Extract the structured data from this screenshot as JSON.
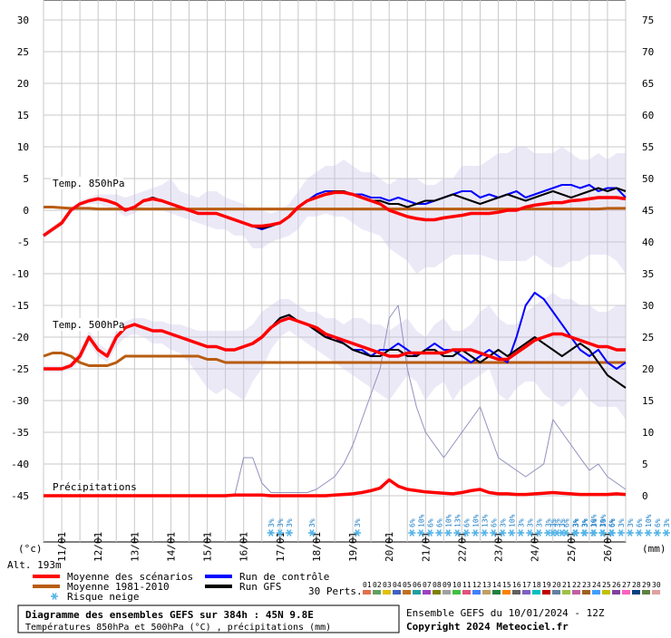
{
  "chart_data": {
    "type": "line",
    "title": "Diagramme des ensembles GEFS sur 384h : 45N 9.8E",
    "subtitle": "Températures 850hPa et 500hPa (°C) , précipitations (mm)",
    "run_info": "Ensemble GEFS du 10/01/2024 - 12Z",
    "copyright": "Copyright 2024 Meteociel.fr",
    "altitude": "Alt. 193m",
    "left_unit": "(°c)",
    "right_unit": "(mm)",
    "left_axis": {
      "ticks": [
        30,
        25,
        20,
        15,
        10,
        5,
        0,
        -5,
        -10,
        -15,
        -20,
        -25,
        -30,
        -35,
        -40,
        -45
      ],
      "ylim": [
        -45,
        30
      ]
    },
    "right_axis": {
      "ticks": [
        75,
        70,
        65,
        60,
        55,
        50,
        45,
        40,
        35,
        30,
        25,
        20,
        15,
        10,
        5,
        0
      ],
      "ylim": [
        0,
        75
      ]
    },
    "x_dates": [
      "11/01",
      "12/01",
      "13/01",
      "14/01",
      "15/01",
      "16/01",
      "17/01",
      "18/01",
      "19/01",
      "20/01",
      "21/01",
      "22/01",
      "23/01",
      "24/01",
      "25/01",
      "26/01"
    ],
    "x_range_hours": [
      0,
      384
    ],
    "panel_labels": {
      "t850": "Temp. 850hPa",
      "t500": "Temp. 500hPa",
      "precip": "Précipitations"
    },
    "legend": {
      "mean": "Moyenne des scénarios",
      "clim": "Moyenne 1981-2010",
      "snow": "Risque neige",
      "control": "Run de contrôle",
      "gfs": "Run GFS",
      "perts": "30 Perts."
    },
    "colors": {
      "mean": "#ff0000",
      "clim": "#b85c10",
      "control": "#0000ff",
      "gfs": "#000000",
      "snow": "#55b4e8",
      "perts": [
        "#e07050",
        "#60a060",
        "#e0c000",
        "#4060c0",
        "#c07020",
        "#20a0a0",
        "#a040c0",
        "#808000",
        "#a0a0a0",
        "#40c040",
        "#e05080",
        "#4080ff",
        "#c0a060",
        "#208040",
        "#ff8000",
        "#606060",
        "#8060c0",
        "#00c0c0",
        "#c00000",
        "#6080a0",
        "#a0c040",
        "#c060a0",
        "#a06020",
        "#40a0ff",
        "#c0c000",
        "#8040a0",
        "#ff60c0",
        "#004080",
        "#608040",
        "#e0a0a0"
      ]
    },
    "pert_numbers": [
      "01",
      "02",
      "03",
      "04",
      "05",
      "06",
      "07",
      "08",
      "09",
      "10",
      "11",
      "12",
      "13",
      "14",
      "15",
      "16",
      "17",
      "18",
      "19",
      "20",
      "21",
      "22",
      "23",
      "24",
      "25",
      "26",
      "27",
      "28",
      "29",
      "30"
    ],
    "t850": {
      "x": [
        0,
        6,
        12,
        18,
        24,
        30,
        36,
        42,
        48,
        54,
        60,
        66,
        72,
        78,
        84,
        90,
        96,
        102,
        108,
        114,
        120,
        126,
        132,
        138,
        144,
        150,
        156,
        162,
        168,
        174,
        180,
        186,
        192,
        198,
        204,
        210,
        216,
        222,
        228,
        234,
        240,
        246,
        252,
        258,
        264,
        270,
        276,
        282,
        288,
        294,
        300,
        306,
        312,
        318,
        324,
        330,
        336,
        342,
        348,
        354,
        360,
        366,
        372,
        378,
        384
      ],
      "mean": [
        -4,
        -3,
        -2,
        0,
        1,
        1.5,
        1.8,
        1.5,
        1,
        0,
        0.5,
        1.5,
        1.8,
        1.5,
        1,
        0.5,
        0,
        -0.5,
        -0.5,
        -0.5,
        -1,
        -1.5,
        -2,
        -2.5,
        -2.5,
        -2.3,
        -2,
        -1,
        0.5,
        1.5,
        2,
        2.5,
        2.8,
        2.8,
        2.5,
        2,
        1.5,
        1,
        0,
        -0.5,
        -1,
        -1.3,
        -1.5,
        -1.5,
        -1.2,
        -1,
        -0.8,
        -0.5,
        -0.5,
        -0.5,
        -0.3,
        0,
        0,
        0.5,
        0.8,
        1,
        1.2,
        1.2,
        1.5,
        1.6,
        1.8,
        2,
        2,
        2,
        1.8
      ],
      "control": [
        -4,
        -3,
        -2,
        0,
        1,
        1.5,
        1.8,
        1.5,
        1,
        0,
        0.5,
        1.5,
        2,
        1.5,
        1,
        0.5,
        0,
        -0.5,
        -0.5,
        -0.5,
        -1,
        -1.5,
        -2,
        -2.5,
        -3,
        -2.5,
        -2,
        -1,
        0.5,
        1.5,
        2.5,
        3,
        3,
        3,
        2.5,
        2.5,
        2,
        2,
        1.5,
        2,
        1.5,
        1,
        1,
        1.5,
        2,
        2.5,
        3,
        3,
        2,
        2.5,
        2,
        2.5,
        3,
        2,
        2.5,
        3,
        3.5,
        4,
        4,
        3.5,
        4,
        3,
        3.5,
        3.5,
        2
      ],
      "gfs": [
        -4,
        -3,
        -2,
        0,
        1,
        1.5,
        1.8,
        1.5,
        1,
        0,
        0.5,
        1.5,
        2,
        1.5,
        1,
        0.5,
        0,
        -0.5,
        -0.5,
        -0.5,
        -1,
        -1.5,
        -2,
        -2.5,
        -2.8,
        -2.5,
        -2,
        -1,
        0.5,
        1.5,
        2,
        2.5,
        3,
        3,
        2.5,
        2,
        1.5,
        1.5,
        1,
        1,
        0.5,
        1,
        1.5,
        1.5,
        2,
        2.5,
        2,
        1.5,
        1,
        1.5,
        2,
        2.5,
        2,
        1.5,
        2,
        2.5,
        3,
        2.5,
        2,
        2.5,
        3,
        3.5,
        3,
        3.5,
        3
      ],
      "clim": [
        0.5,
        0.5,
        0.4,
        0.3,
        0.3,
        0.3,
        0.2,
        0.2,
        0.2,
        0.2,
        0.2,
        0.2,
        0.2,
        0.2,
        0.2,
        0.2,
        0.2,
        0.2,
        0.2,
        0.2,
        0.2,
        0.2,
        0.2,
        0.2,
        0.2,
        0.2,
        0.2,
        0.2,
        0.2,
        0.2,
        0.2,
        0.2,
        0.2,
        0.2,
        0.2,
        0.2,
        0.2,
        0.2,
        0.2,
        0.2,
        0.2,
        0.2,
        0.2,
        0.2,
        0.2,
        0.2,
        0.2,
        0.2,
        0.2,
        0.2,
        0.2,
        0.2,
        0.2,
        0.2,
        0.2,
        0.2,
        0.2,
        0.2,
        0.2,
        0.2,
        0.2,
        0.2,
        0.3,
        0.3,
        0.3
      ],
      "spread_min": [
        -4.5,
        -3.5,
        -2.5,
        -0.5,
        0.5,
        1,
        1,
        0.5,
        0,
        -1,
        -0.5,
        0.5,
        0.5,
        0,
        -0.5,
        -1,
        -1.5,
        -2,
        -2.5,
        -3,
        -3,
        -4,
        -4,
        -6,
        -6,
        -5,
        -4.5,
        -4,
        -3,
        -1,
        -1,
        -0.5,
        -1,
        -1,
        -2,
        -3,
        -3.5,
        -4,
        -6,
        -7,
        -8,
        -10,
        -9,
        -9,
        -8,
        -7,
        -7,
        -7,
        -7,
        -7.5,
        -8,
        -8,
        -8,
        -8,
        -7,
        -8,
        -9,
        -9,
        -8,
        -8,
        -7,
        -7,
        -7,
        -8,
        -10
      ],
      "spread_max": [
        -3.5,
        -2.5,
        -1.5,
        0.5,
        1.5,
        2,
        2.5,
        2.5,
        2.5,
        2,
        2.5,
        3,
        3.5,
        4,
        5,
        3,
        2.5,
        2,
        3,
        3,
        2,
        1.5,
        1,
        0,
        0,
        -0.5,
        0,
        1,
        3,
        5,
        6,
        7,
        7,
        8,
        7,
        6,
        6,
        5,
        4,
        5,
        5,
        5,
        4,
        4,
        5,
        5,
        7,
        7,
        7,
        8,
        9,
        9,
        10,
        10,
        9,
        9,
        9,
        10,
        9,
        8,
        8,
        9,
        8,
        9,
        9
      ]
    },
    "t500": {
      "x": [
        0,
        6,
        12,
        18,
        24,
        30,
        36,
        42,
        48,
        54,
        60,
        66,
        72,
        78,
        84,
        90,
        96,
        102,
        108,
        114,
        120,
        126,
        132,
        138,
        144,
        150,
        156,
        162,
        168,
        174,
        180,
        186,
        192,
        198,
        204,
        210,
        216,
        222,
        228,
        234,
        240,
        246,
        252,
        258,
        264,
        270,
        276,
        282,
        288,
        294,
        300,
        306,
        312,
        318,
        324,
        330,
        336,
        342,
        348,
        354,
        360,
        366,
        372,
        378,
        384
      ],
      "mean": [
        -25,
        -25,
        -25,
        -24.5,
        -23,
        -20,
        -22,
        -23,
        -20,
        -18.5,
        -18,
        -18.5,
        -19,
        -19,
        -19.5,
        -20,
        -20.5,
        -21,
        -21.5,
        -21.5,
        -22,
        -22,
        -21.5,
        -21,
        -20,
        -18.5,
        -17.5,
        -17,
        -17.5,
        -18,
        -18.5,
        -19.5,
        -20,
        -20.5,
        -21,
        -21.5,
        -22,
        -22.5,
        -23,
        -23,
        -22.5,
        -22.5,
        -22.5,
        -22.5,
        -22.5,
        -22,
        -22,
        -22,
        -22.5,
        -23,
        -23.5,
        -23.5,
        -22.5,
        -21.5,
        -20.5,
        -20,
        -19.5,
        -19.5,
        -20,
        -20.5,
        -21,
        -21.5,
        -21.5,
        -22,
        -22
      ],
      "control": [
        -25,
        -25,
        -25,
        -24.5,
        -23,
        -20,
        -22,
        -23,
        -20,
        -18.5,
        -18,
        -18.5,
        -19,
        -19,
        -19.5,
        -20,
        -20.5,
        -21,
        -21.5,
        -21.5,
        -22,
        -22,
        -21.5,
        -21,
        -20,
        -18.5,
        -17,
        -16.5,
        -17.5,
        -18,
        -19,
        -20,
        -20,
        -21,
        -22,
        -22,
        -23,
        -22,
        -22,
        -21,
        -22,
        -23,
        -22,
        -21,
        -22,
        -22,
        -23,
        -24,
        -23,
        -22,
        -23,
        -24,
        -20,
        -15,
        -13,
        -14,
        -16,
        -18,
        -20,
        -22,
        -23,
        -22,
        -24,
        -25,
        -24
      ],
      "gfs": [
        -25,
        -25,
        -25,
        -24.5,
        -23,
        -20,
        -22,
        -23,
        -20,
        -18.5,
        -18,
        -18.5,
        -19,
        -19,
        -19.5,
        -20,
        -20.5,
        -21,
        -21.5,
        -21.5,
        -22,
        -22,
        -21.5,
        -21,
        -20,
        -18.5,
        -17,
        -16.5,
        -17.5,
        -18,
        -19,
        -20,
        -20.5,
        -21,
        -22,
        -22.5,
        -23,
        -23,
        -22,
        -22,
        -23,
        -23,
        -22,
        -22,
        -23,
        -23,
        -22,
        -23,
        -24,
        -23,
        -22,
        -23,
        -22,
        -21,
        -20,
        -21,
        -22,
        -23,
        -22,
        -21,
        -22,
        -24,
        -26,
        -27,
        -28
      ],
      "clim": [
        -23,
        -22.5,
        -22.5,
        -23,
        -24,
        -24.5,
        -24.5,
        -24.5,
        -24,
        -23,
        -23,
        -23,
        -23,
        -23,
        -23,
        -23,
        -23,
        -23,
        -23.5,
        -23.5,
        -24,
        -24,
        -24,
        -24,
        -24,
        -24,
        -24,
        -24,
        -24,
        -24,
        -24,
        -24,
        -24,
        -24,
        -24,
        -24,
        -24,
        -24,
        -24,
        -24,
        -24,
        -24,
        -24,
        -24,
        -24,
        -24,
        -24,
        -24,
        -24,
        -24,
        -24,
        -24,
        -24,
        -24,
        -24,
        -24,
        -24,
        -24,
        -24,
        -24,
        -24,
        -24,
        -24,
        -24,
        -24
      ],
      "spread_min": [
        -25.5,
        -25.5,
        -25.5,
        -25,
        -24,
        -21,
        -23,
        -24,
        -21.5,
        -20,
        -19.5,
        -20,
        -21,
        -21,
        -22,
        -22.5,
        -24,
        -26,
        -28,
        -29,
        -28,
        -29,
        -30,
        -27,
        -25,
        -22,
        -20,
        -19,
        -20,
        -21,
        -22,
        -23,
        -24,
        -25,
        -26,
        -27,
        -28,
        -29,
        -30,
        -28,
        -26,
        -27,
        -30,
        -28,
        -27,
        -30,
        -28,
        -27,
        -26,
        -25,
        -29,
        -30,
        -28,
        -27,
        -27,
        -29,
        -30,
        -31,
        -30,
        -28,
        -30,
        -31,
        -31,
        -31,
        -33
      ],
      "spread_max": [
        -24.5,
        -24.5,
        -24.5,
        -24,
        -22,
        -19,
        -21,
        -22,
        -19,
        -17.5,
        -17,
        -17,
        -17.5,
        -17.5,
        -18,
        -18,
        -18.5,
        -19,
        -19,
        -19,
        -19,
        -19,
        -19,
        -18,
        -16,
        -15,
        -14,
        -14,
        -15,
        -16,
        -16,
        -17,
        -17,
        -18,
        -17,
        -17,
        -18,
        -18,
        -19,
        -18,
        -17,
        -19,
        -20,
        -18,
        -17,
        -19,
        -19,
        -18,
        -16,
        -15,
        -17,
        -18,
        -18,
        -16,
        -15,
        -14,
        -13,
        -14,
        -14,
        -15,
        -15,
        -16,
        -16,
        -15,
        -15
      ]
    },
    "precip": {
      "x": [
        0,
        6,
        12,
        18,
        24,
        30,
        36,
        42,
        48,
        54,
        60,
        66,
        72,
        78,
        84,
        90,
        96,
        102,
        108,
        114,
        120,
        126,
        132,
        138,
        144,
        150,
        156,
        162,
        168,
        174,
        180,
        186,
        192,
        198,
        204,
        210,
        216,
        222,
        228,
        234,
        240,
        246,
        252,
        258,
        264,
        270,
        276,
        282,
        288,
        294,
        300,
        306,
        312,
        318,
        324,
        330,
        336,
        342,
        348,
        354,
        360,
        366,
        372,
        378,
        384
      ],
      "mean": [
        0,
        0,
        0,
        0,
        0,
        0,
        0,
        0,
        0,
        0,
        0,
        0,
        0,
        0,
        0,
        0,
        0,
        0,
        0,
        0,
        0,
        0.1,
        0.1,
        0.1,
        0.1,
        0,
        0,
        0,
        0,
        0,
        0,
        0,
        0.1,
        0.2,
        0.3,
        0.5,
        0.8,
        1.2,
        2.5,
        1.5,
        1,
        0.8,
        0.6,
        0.5,
        0.4,
        0.3,
        0.5,
        0.8,
        1,
        0.5,
        0.3,
        0.3,
        0.2,
        0.2,
        0.3,
        0.4,
        0.5,
        0.4,
        0.3,
        0.2,
        0.2,
        0.2,
        0.2,
        0.3,
        0.2
      ],
      "max": [
        0,
        0,
        0,
        0,
        0,
        0,
        0,
        0,
        0,
        0,
        0,
        0,
        0,
        0,
        0,
        0,
        0,
        0,
        0,
        0,
        0,
        0,
        6,
        6,
        2,
        0.5,
        0.5,
        0.5,
        0.5,
        0.5,
        1,
        2,
        3,
        5,
        8,
        12,
        16,
        20,
        28,
        30,
        20,
        14,
        10,
        8,
        6,
        8,
        10,
        12,
        14,
        10,
        6,
        5,
        4,
        3,
        4,
        5,
        12,
        10,
        8,
        6,
        4,
        5,
        3,
        2,
        1
      ]
    },
    "snow_risk": [
      {
        "h": 150,
        "values": [
          "3%",
          "3%",
          "3%"
        ]
      },
      {
        "h": 177,
        "values": [
          "3%"
        ]
      },
      {
        "h": 207,
        "values": [
          "3%"
        ]
      },
      {
        "h": 243,
        "values": [
          "6%",
          "10%",
          "6%",
          "6%",
          "10%",
          "13%",
          "6%",
          "10%",
          "13%",
          "6%",
          "3%",
          "10%",
          "3%",
          "3%",
          "3%",
          "3%",
          "3%",
          "6%",
          "3%",
          "3%",
          "10%",
          "3%",
          "6%"
        ]
      },
      {
        "h": 336,
        "values": [
          "3%",
          "3%"
        ]
      },
      {
        "h": 351,
        "values": [
          "3%",
          "3%",
          "3%",
          "10%",
          "6%",
          "3%",
          "3%",
          "6%",
          "10%",
          "6%",
          "3%",
          "3%"
        ]
      }
    ]
  }
}
